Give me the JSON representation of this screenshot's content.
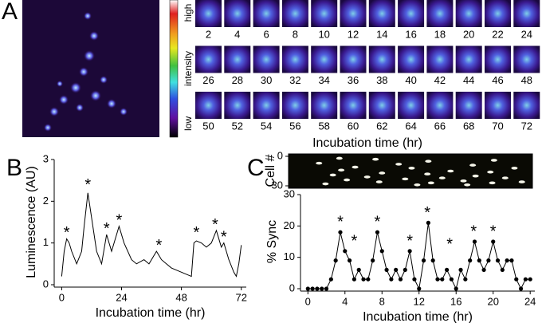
{
  "panel_a": {
    "panel": "A",
    "colorbar_high": "high",
    "colorbar_title": "intensity",
    "colorbar_low": "low",
    "frames": [
      2,
      4,
      6,
      8,
      10,
      12,
      14,
      16,
      18,
      20,
      22,
      24,
      26,
      28,
      30,
      32,
      34,
      36,
      38,
      40,
      42,
      44,
      46,
      48,
      50,
      52,
      54,
      56,
      58,
      60,
      62,
      64,
      66,
      68,
      70,
      72
    ],
    "xlabel": "Incubation time (hr)"
  },
  "chart_data": [
    {
      "type": "line",
      "panel": "B",
      "xlabel": "Incubation time (hr)",
      "ylabel": "Luminescence (AU)",
      "color": "#000000",
      "x": [
        0,
        1,
        2,
        3,
        4,
        6,
        8,
        9,
        10.5,
        12,
        14,
        16,
        18,
        19,
        20,
        21,
        23,
        25,
        28,
        30,
        33,
        35,
        38,
        40,
        42,
        44,
        48,
        50,
        52,
        53,
        54,
        56,
        58,
        60,
        61,
        62,
        63,
        64,
        65,
        67,
        69,
        70,
        71,
        72
      ],
      "values": [
        0.2,
        0.8,
        1.1,
        1.0,
        0.8,
        0.5,
        0.8,
        1.4,
        2.2,
        1.6,
        0.8,
        0.5,
        1.2,
        1.0,
        0.8,
        1.0,
        1.4,
        1.0,
        0.6,
        0.5,
        0.6,
        0.5,
        0.8,
        0.6,
        0.5,
        0.4,
        0.3,
        0.25,
        0.2,
        1.0,
        1.05,
        1.0,
        0.9,
        1.0,
        1.15,
        1.3,
        1.1,
        0.9,
        1.0,
        0.6,
        0.3,
        0.2,
        0.5,
        0.95
      ],
      "xlim": [
        -3,
        74
      ],
      "ylim": [
        0,
        3
      ],
      "xticks": [
        0,
        24,
        48,
        72
      ],
      "yticks": [
        0,
        1,
        2,
        3
      ],
      "annotation": "*",
      "annotation_color": "#e02828",
      "annotation_x": [
        2,
        10.5,
        18,
        23,
        39,
        54,
        61.5,
        65
      ],
      "annotation_y": [
        1.3,
        2.45,
        1.4,
        1.6,
        1.0,
        1.3,
        1.5,
        1.2
      ]
    },
    {
      "type": "line",
      "panel": "C",
      "markers": true,
      "xlabel": "Incubation time (hr)",
      "ylabel": "% Sync",
      "color": "#000000",
      "x": [
        0,
        0.5,
        1,
        1.5,
        2,
        2.5,
        3,
        3.5,
        4,
        4.5,
        5,
        5.5,
        6,
        6.5,
        7,
        7.5,
        8,
        8.5,
        9,
        9.5,
        10,
        10.5,
        11,
        11.5,
        12,
        12.5,
        13,
        13.5,
        14,
        14.5,
        15,
        15.5,
        16,
        16.5,
        17,
        17.5,
        18,
        18.5,
        19,
        19.5,
        20,
        20.5,
        21,
        21.5,
        22,
        22.5,
        23,
        23.5,
        24
      ],
      "values": [
        0,
        0,
        0,
        0,
        0,
        3,
        9,
        18,
        12,
        9,
        3,
        6,
        3,
        3,
        9,
        18,
        12,
        6,
        3,
        6,
        3,
        6,
        12,
        3,
        0,
        9,
        21,
        9,
        3,
        3,
        6,
        3,
        0,
        6,
        3,
        9,
        15,
        9,
        6,
        9,
        15,
        9,
        6,
        9,
        9,
        3,
        0,
        3,
        3
      ],
      "xlim": [
        -0.8,
        24.5
      ],
      "ylim": [
        0,
        30
      ],
      "xticks": [
        0,
        4,
        8,
        12,
        16,
        20,
        24
      ],
      "yticks": [
        0,
        10,
        20,
        30
      ],
      "annotation": "*",
      "annotation_color": "#e02828",
      "annotation_x": [
        3.5,
        5,
        7.5,
        11,
        12.9,
        15.3,
        17.9,
        20
      ],
      "annotation_y": [
        22,
        16,
        22,
        16,
        25,
        15,
        19,
        19
      ],
      "raster": {
        "ylabel": "Cell #",
        "ylim": [
          0,
          30
        ],
        "yticks": [
          0,
          30
        ],
        "times": [
          3.4,
          7.3,
          13.0,
          20.1,
          1.2,
          9.8,
          17.8,
          5.1,
          11.2,
          22.3,
          3.6,
          15.4,
          19.7,
          8.0,
          12.9,
          2.7,
          18.1,
          6.4,
          14.5,
          21.3,
          10.5,
          4.2,
          16.8,
          23.1,
          7.7,
          13.3,
          19.9,
          1.9,
          11.8,
          17.2
        ],
        "cells": [
          2,
          3,
          5,
          4,
          7,
          8,
          9,
          11,
          12,
          12,
          14,
          15,
          16,
          17,
          18,
          19,
          20,
          21,
          22,
          22,
          23,
          24,
          25,
          26,
          26,
          27,
          27,
          28,
          29,
          29
        ]
      }
    }
  ]
}
